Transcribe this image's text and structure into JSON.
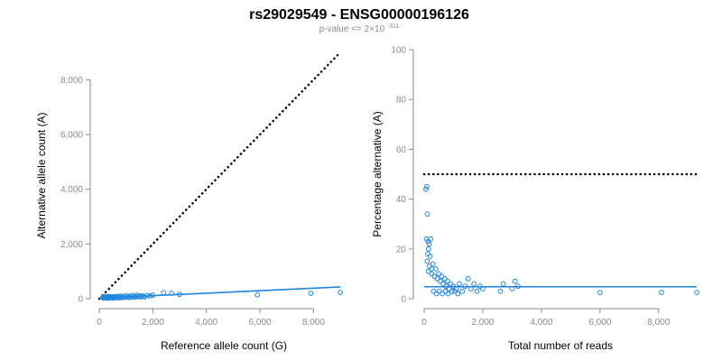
{
  "title": "rs29029549 - ENSG00000196126",
  "subtitle": {
    "prefix": "p-value <= 2×10",
    "exponent": "-311"
  },
  "colors": {
    "series": "#1f86e0",
    "reference": "#000000",
    "axis": "#8a8a8a"
  },
  "chart_data": [
    {
      "type": "scatter",
      "xlabel": "Reference allele count (G)",
      "ylabel": "Alternative allele count (A)",
      "xlim": [
        0,
        9300
      ],
      "ylim": [
        0,
        9000
      ],
      "xticks": [
        0,
        2000,
        4000,
        6000,
        8000
      ],
      "yticks": [
        0,
        2000,
        4000,
        6000,
        8000
      ],
      "xtick_labels": [
        "0",
        "2,000",
        "4,000",
        "6,000",
        "8,000"
      ],
      "ytick_labels": [
        "0",
        "2,000",
        "4,000",
        "6,000",
        "8,000"
      ],
      "reference_line": {
        "style": "dotted",
        "x": [
          0,
          9000
        ],
        "y": [
          0,
          9000
        ]
      },
      "fit_line": {
        "x": [
          0,
          9000
        ],
        "y": [
          20,
          430
        ]
      },
      "points": [
        [
          120,
          40
        ],
        [
          150,
          60
        ],
        [
          180,
          20
        ],
        [
          200,
          80
        ],
        [
          220,
          30
        ],
        [
          250,
          50
        ],
        [
          280,
          70
        ],
        [
          300,
          40
        ],
        [
          330,
          20
        ],
        [
          360,
          60
        ],
        [
          390,
          90
        ],
        [
          420,
          30
        ],
        [
          450,
          50
        ],
        [
          480,
          40
        ],
        [
          510,
          70
        ],
        [
          540,
          20
        ],
        [
          570,
          60
        ],
        [
          600,
          80
        ],
        [
          630,
          40
        ],
        [
          660,
          50
        ],
        [
          700,
          90
        ],
        [
          740,
          30
        ],
        [
          780,
          60
        ],
        [
          820,
          100
        ],
        [
          860,
          40
        ],
        [
          900,
          70
        ],
        [
          950,
          50
        ],
        [
          1000,
          110
        ],
        [
          1050,
          60
        ],
        [
          1100,
          80
        ],
        [
          1150,
          40
        ],
        [
          1200,
          120
        ],
        [
          1250,
          70
        ],
        [
          1300,
          90
        ],
        [
          1350,
          60
        ],
        [
          1400,
          130
        ],
        [
          1450,
          80
        ],
        [
          1500,
          100
        ],
        [
          1550,
          60
        ],
        [
          1600,
          110
        ],
        [
          1650,
          90
        ],
        [
          1700,
          70
        ],
        [
          1800,
          120
        ],
        [
          1900,
          100
        ],
        [
          2000,
          130
        ],
        [
          2400,
          220
        ],
        [
          2700,
          200
        ],
        [
          3000,
          160
        ],
        [
          5900,
          140
        ],
        [
          7900,
          200
        ],
        [
          9000,
          230
        ]
      ]
    },
    {
      "type": "scatter",
      "xlabel": "Total number of reads",
      "ylabel": "Percentage alternative (A)",
      "xlim": [
        0,
        9300
      ],
      "ylim": [
        0,
        100
      ],
      "xticks": [
        0,
        2000,
        4000,
        6000,
        8000
      ],
      "yticks": [
        0,
        20,
        40,
        60,
        80,
        100
      ],
      "xtick_labels": [
        "0",
        "2,000",
        "4,000",
        "6,000",
        "8,000"
      ],
      "ytick_labels": [
        "0",
        "20",
        "40",
        "60",
        "80",
        "100"
      ],
      "reference_line": {
        "style": "dotted",
        "x": [
          0,
          9300
        ],
        "y": [
          50,
          50
        ]
      },
      "fit_line": {
        "x": [
          0,
          9300
        ],
        "y": [
          4.8,
          4.8
        ]
      },
      "points": [
        [
          60,
          44
        ],
        [
          90,
          45
        ],
        [
          110,
          34
        ],
        [
          80,
          24
        ],
        [
          130,
          23
        ],
        [
          170,
          22
        ],
        [
          220,
          24
        ],
        [
          150,
          20
        ],
        [
          120,
          18
        ],
        [
          200,
          17
        ],
        [
          100,
          15
        ],
        [
          180,
          13
        ],
        [
          250,
          12
        ],
        [
          300,
          14
        ],
        [
          140,
          11
        ],
        [
          260,
          10
        ],
        [
          350,
          9
        ],
        [
          400,
          12
        ],
        [
          450,
          8
        ],
        [
          500,
          10
        ],
        [
          550,
          7
        ],
        [
          600,
          9
        ],
        [
          650,
          6
        ],
        [
          700,
          8
        ],
        [
          750,
          5
        ],
        [
          800,
          7
        ],
        [
          850,
          4
        ],
        [
          900,
          6
        ],
        [
          950,
          3
        ],
        [
          1000,
          5
        ],
        [
          1100,
          4
        ],
        [
          1200,
          6
        ],
        [
          1300,
          3
        ],
        [
          1400,
          5
        ],
        [
          1500,
          8
        ],
        [
          1600,
          4
        ],
        [
          1700,
          6
        ],
        [
          1800,
          3
        ],
        [
          1900,
          5
        ],
        [
          2000,
          4
        ],
        [
          2600,
          3
        ],
        [
          2700,
          6
        ],
        [
          3000,
          4
        ],
        [
          3100,
          7
        ],
        [
          3200,
          5
        ],
        [
          6000,
          2.5
        ],
        [
          8100,
          2.5
        ],
        [
          9300,
          2.5
        ],
        [
          320,
          3
        ],
        [
          420,
          2
        ],
        [
          520,
          3
        ],
        [
          620,
          2
        ],
        [
          720,
          3
        ],
        [
          820,
          2
        ],
        [
          1050,
          3
        ],
        [
          1150,
          2
        ]
      ]
    }
  ]
}
